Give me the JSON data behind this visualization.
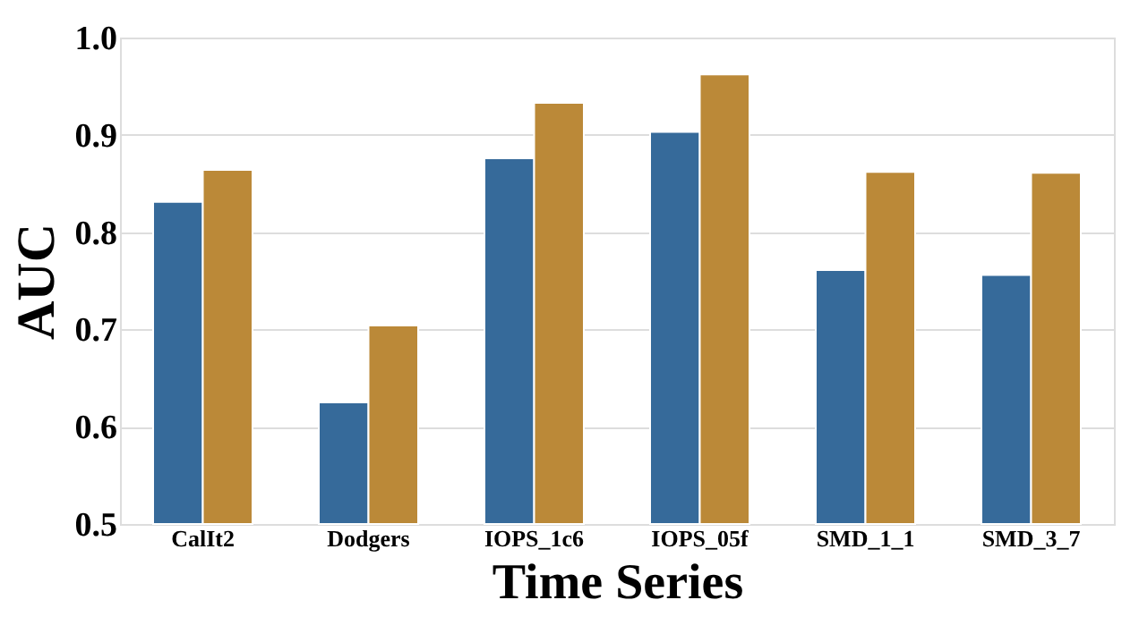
{
  "chart_data": {
    "type": "bar",
    "xlabel": "Time Series",
    "ylabel": "AUC",
    "categories": [
      "CalIt2",
      "Dodgers",
      "IOPS_1c6",
      "IOPS_05f",
      "SMD_1_1",
      "SMD_3_7"
    ],
    "series": [
      {
        "color": "#366a9a",
        "values": [
          0.831,
          0.625,
          0.876,
          0.903,
          0.761,
          0.756
        ]
      },
      {
        "color": "#bb8938",
        "values": [
          0.864,
          0.704,
          0.933,
          0.962,
          0.862,
          0.861
        ]
      }
    ],
    "ylim": [
      0.5,
      1.0
    ],
    "yticks": [
      0.5,
      0.6,
      0.7,
      0.8,
      0.9,
      {
        "value": 1,
        "label": "1.0"
      }
    ],
    "grid": "y",
    "legend": false
  }
}
